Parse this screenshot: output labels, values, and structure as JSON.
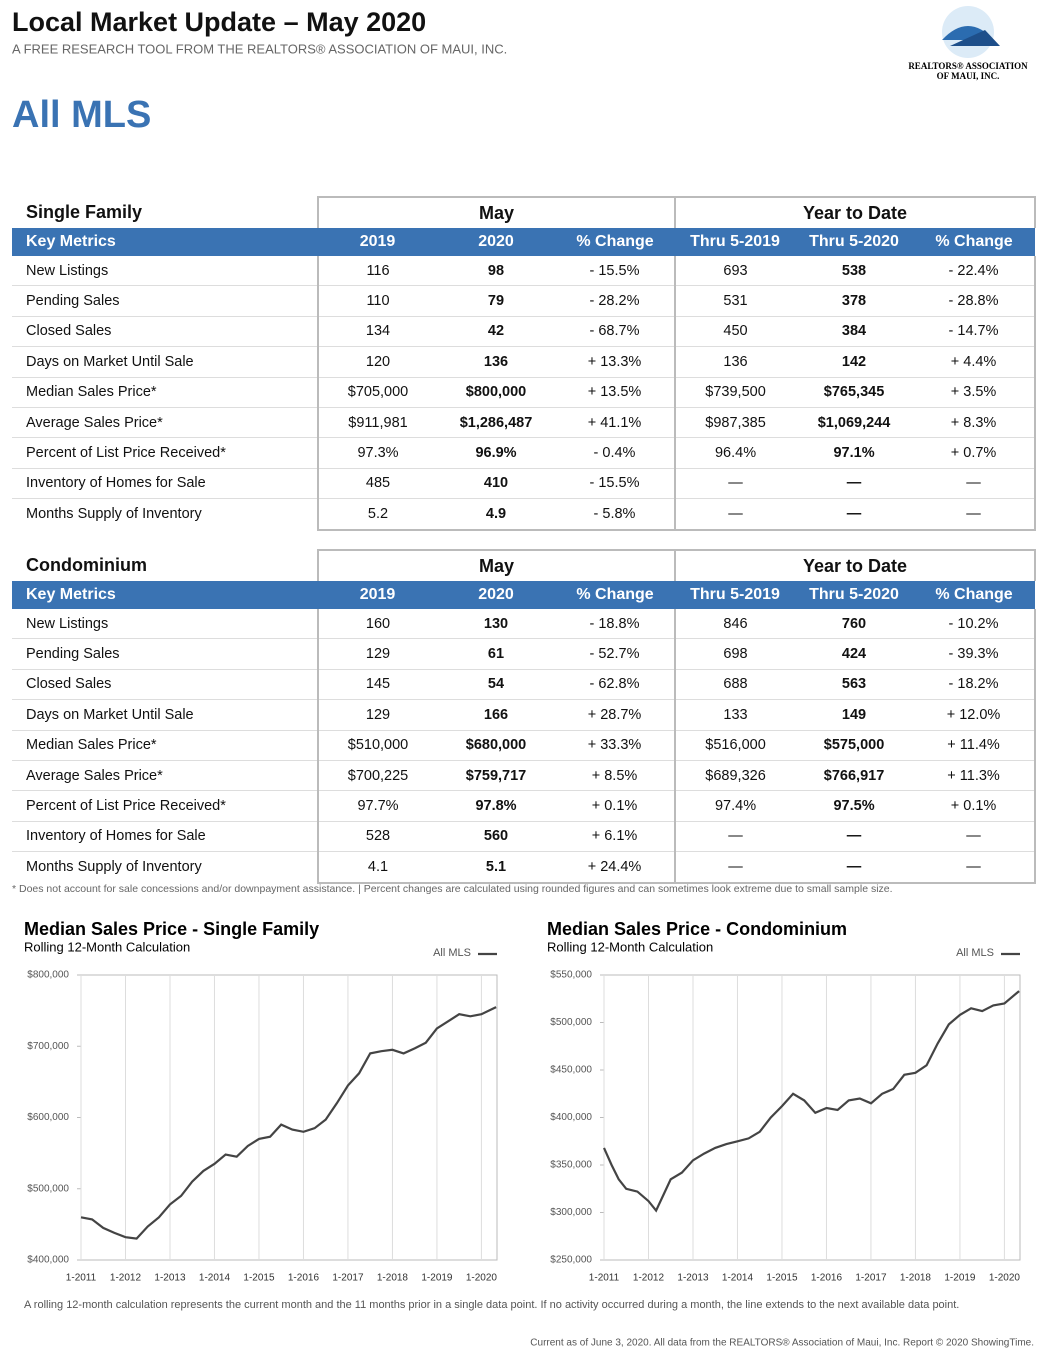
{
  "header": {
    "title": "Local Market Update – May 2020",
    "subtitle": "A FREE RESEARCH TOOL FROM THE REALTORS® ASSOCIATION OF MAUI, INC.",
    "logo_line1": "REALTORS® ASSOCIATION",
    "logo_line2": "OF MAUI, INC.",
    "section": "All MLS"
  },
  "tables": [
    {
      "title": "Single Family",
      "group1": "May",
      "group2": "Year to Date",
      "columns": [
        "Key Metrics",
        "2019",
        "2020",
        "% Change",
        "Thru 5-2019",
        "Thru 5-2020",
        "% Change"
      ],
      "rows": [
        [
          "New Listings",
          "116",
          "98",
          "- 15.5%",
          "693",
          "538",
          "- 22.4%"
        ],
        [
          "Pending Sales",
          "110",
          "79",
          "- 28.2%",
          "531",
          "378",
          "- 28.8%"
        ],
        [
          "Closed Sales",
          "134",
          "42",
          "- 68.7%",
          "450",
          "384",
          "- 14.7%"
        ],
        [
          "Days on Market Until Sale",
          "120",
          "136",
          "+ 13.3%",
          "136",
          "142",
          "+ 4.4%"
        ],
        [
          "Median Sales Price*",
          "$705,000",
          "$800,000",
          "+ 13.5%",
          "$739,500",
          "$765,345",
          "+ 3.5%"
        ],
        [
          "Average Sales Price*",
          "$911,981",
          "$1,286,487",
          "+ 41.1%",
          "$987,385",
          "$1,069,244",
          "+ 8.3%"
        ],
        [
          "Percent of List Price Received*",
          "97.3%",
          "96.9%",
          "- 0.4%",
          "96.4%",
          "97.1%",
          "+ 0.7%"
        ],
        [
          "Inventory of Homes for Sale",
          "485",
          "410",
          "- 15.5%",
          "—",
          "—",
          "—"
        ],
        [
          "Months Supply of Inventory",
          "5.2",
          "4.9",
          "- 5.8%",
          "—",
          "—",
          "—"
        ]
      ]
    },
    {
      "title": "Condominium",
      "group1": "May",
      "group2": "Year to Date",
      "columns": [
        "Key Metrics",
        "2019",
        "2020",
        "% Change",
        "Thru 5-2019",
        "Thru 5-2020",
        "% Change"
      ],
      "rows": [
        [
          "New Listings",
          "160",
          "130",
          "- 18.8%",
          "846",
          "760",
          "- 10.2%"
        ],
        [
          "Pending Sales",
          "129",
          "61",
          "- 52.7%",
          "698",
          "424",
          "- 39.3%"
        ],
        [
          "Closed Sales",
          "145",
          "54",
          "- 62.8%",
          "688",
          "563",
          "- 18.2%"
        ],
        [
          "Days on Market Until Sale",
          "129",
          "166",
          "+ 28.7%",
          "133",
          "149",
          "+ 12.0%"
        ],
        [
          "Median Sales Price*",
          "$510,000",
          "$680,000",
          "+ 33.3%",
          "$516,000",
          "$575,000",
          "+ 11.4%"
        ],
        [
          "Average Sales Price*",
          "$700,225",
          "$759,717",
          "+ 8.5%",
          "$689,326",
          "$766,917",
          "+ 11.3%"
        ],
        [
          "Percent of List Price Received*",
          "97.7%",
          "97.8%",
          "+ 0.1%",
          "97.4%",
          "97.5%",
          "+ 0.1%"
        ],
        [
          "Inventory of Homes for Sale",
          "528",
          "560",
          "+ 6.1%",
          "—",
          "—",
          "—"
        ],
        [
          "Months Supply of Inventory",
          "4.1",
          "5.1",
          "+ 24.4%",
          "—",
          "—",
          "—"
        ]
      ]
    }
  ],
  "notes": {
    "table_note": "* Does not account for sale concessions and/or downpayment assistance. | Percent changes are calculated using rounded figures and can sometimes look extreme due to small sample size.",
    "chart_note": "A rolling 12-month calculation represents the current month and the 11 months prior in a single data point. If no activity occurred during a month, the line extends to the next available data point.",
    "footer": "Current as of June 3, 2020. All data from the REALTORS® Association of Maui, Inc. Report © 2020 ShowingTime."
  },
  "chart_data": [
    {
      "type": "line",
      "title": "Median Sales Price - Single Family",
      "subtitle": "Rolling 12-Month Calculation",
      "x": [
        2011,
        2011.25,
        2011.5,
        2011.75,
        2012,
        2012.25,
        2012.5,
        2012.75,
        2013,
        2013.25,
        2013.5,
        2013.75,
        2014,
        2014.25,
        2014.5,
        2014.75,
        2015,
        2015.25,
        2015.5,
        2015.75,
        2016,
        2016.25,
        2016.5,
        2016.75,
        2017,
        2017.25,
        2017.5,
        2017.75,
        2018,
        2018.25,
        2018.5,
        2018.75,
        2019,
        2019.25,
        2019.5,
        2019.75,
        2020,
        2020.33
      ],
      "series": [
        {
          "name": "All MLS",
          "color": "#444444",
          "values": [
            460000,
            457000,
            445000,
            438000,
            432000,
            430000,
            447000,
            460000,
            478000,
            490000,
            510000,
            525000,
            535000,
            548000,
            545000,
            560000,
            570000,
            573000,
            590000,
            583000,
            580000,
            585000,
            597000,
            620000,
            645000,
            662000,
            690000,
            693000,
            695000,
            690000,
            697000,
            705000,
            725000,
            735000,
            745000,
            742000,
            745000,
            755000
          ]
        }
      ],
      "xlim": [
        2011,
        2020.35
      ],
      "xticks": [
        {
          "value": 2011,
          "label": "1-2011"
        },
        {
          "value": 2012,
          "label": "1-2012"
        },
        {
          "value": 2013,
          "label": "1-2013"
        },
        {
          "value": 2014,
          "label": "1-2014"
        },
        {
          "value": 2015,
          "label": "1-2015"
        },
        {
          "value": 2016,
          "label": "1-2016"
        },
        {
          "value": 2017,
          "label": "1-2017"
        },
        {
          "value": 2018,
          "label": "1-2018"
        },
        {
          "value": 2019,
          "label": "1-2019"
        },
        {
          "value": 2020,
          "label": "1-2020"
        }
      ],
      "ylim": [
        400000,
        800000
      ],
      "yticks": [
        {
          "value": 400000,
          "label": "$400,000"
        },
        {
          "value": 500000,
          "label": "$500,000"
        },
        {
          "value": 600000,
          "label": "$600,000"
        },
        {
          "value": 700000,
          "label": "$700,000"
        },
        {
          "value": 800000,
          "label": "$800,000"
        }
      ],
      "grid": true
    },
    {
      "type": "line",
      "title": "Median Sales Price - Condominium",
      "subtitle": "Rolling 12-Month Calculation",
      "x": [
        2011,
        2011.17,
        2011.33,
        2011.5,
        2011.75,
        2012,
        2012.17,
        2012.33,
        2012.5,
        2012.75,
        2013,
        2013.25,
        2013.5,
        2013.75,
        2014,
        2014.25,
        2014.5,
        2014.75,
        2015,
        2015.25,
        2015.5,
        2015.75,
        2016,
        2016.25,
        2016.5,
        2016.75,
        2017,
        2017.25,
        2017.5,
        2017.75,
        2018,
        2018.25,
        2018.5,
        2018.75,
        2019,
        2019.25,
        2019.5,
        2019.75,
        2020,
        2020.33
      ],
      "series": [
        {
          "name": "All MLS",
          "color": "#444444",
          "values": [
            368000,
            350000,
            335000,
            325000,
            322000,
            312000,
            302000,
            318000,
            335000,
            342000,
            355000,
            362000,
            368000,
            372000,
            375000,
            378000,
            385000,
            400000,
            412000,
            425000,
            418000,
            405000,
            410000,
            408000,
            418000,
            420000,
            415000,
            425000,
            430000,
            445000,
            447000,
            455000,
            478000,
            498000,
            508000,
            515000,
            512000,
            518000,
            520000,
            533000
          ]
        }
      ],
      "xlim": [
        2011,
        2020.35
      ],
      "xticks": [
        {
          "value": 2011,
          "label": "1-2011"
        },
        {
          "value": 2012,
          "label": "1-2012"
        },
        {
          "value": 2013,
          "label": "1-2013"
        },
        {
          "value": 2014,
          "label": "1-2014"
        },
        {
          "value": 2015,
          "label": "1-2015"
        },
        {
          "value": 2016,
          "label": "1-2016"
        },
        {
          "value": 2017,
          "label": "1-2017"
        },
        {
          "value": 2018,
          "label": "1-2018"
        },
        {
          "value": 2019,
          "label": "1-2019"
        },
        {
          "value": 2020,
          "label": "1-2020"
        }
      ],
      "ylim": [
        250000,
        550000
      ],
      "yticks": [
        {
          "value": 250000,
          "label": "$250,000"
        },
        {
          "value": 300000,
          "label": "$300,000"
        },
        {
          "value": 350000,
          "label": "$350,000"
        },
        {
          "value": 400000,
          "label": "$400,000"
        },
        {
          "value": 450000,
          "label": "$450,000"
        },
        {
          "value": 500000,
          "label": "$500,000"
        },
        {
          "value": 550000,
          "label": "$550,000"
        }
      ],
      "grid": true
    }
  ]
}
